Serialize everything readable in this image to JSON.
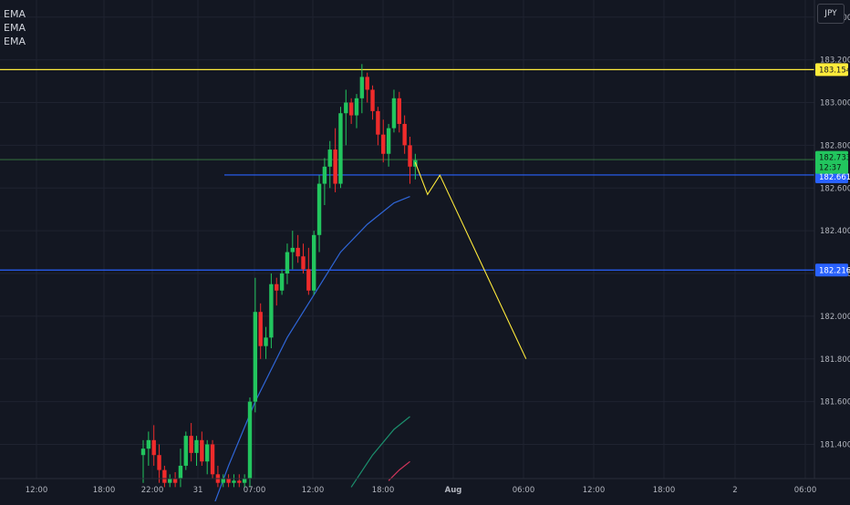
{
  "toolbar": {
    "currency": "JPY"
  },
  "indicators": [
    {
      "label": "EMA"
    },
    {
      "label": "EMA"
    },
    {
      "label": "EMA"
    }
  ],
  "colors": {
    "background": "#131722",
    "grid": "#1f2330",
    "up": "#26a69a",
    "up_bright": "#22c55e",
    "down": "#ef2b2b",
    "yellow": "#ffeb3b",
    "blue_line": "#2962ff",
    "ema_blue": "#2f66d8",
    "ema_teal": "#1b8f6d",
    "ema_red": "#d0345a",
    "axis_text": "#b2b5be",
    "green_line": "#4caf50"
  },
  "chart_data": {
    "type": "candlestick",
    "symbol_currency": "JPY",
    "ylim": [
      181.24,
      183.48
    ],
    "y_ticks": [
      "183.400",
      "183.200",
      "183.000",
      "182.800",
      "182.600",
      "182.400",
      "182.200",
      "182.000",
      "181.800",
      "181.600",
      "181.400"
    ],
    "x_ticks": [
      "12:00",
      "18:00",
      "22:00",
      "31",
      "07:00",
      "12:00",
      "18:00",
      "Aug",
      "06:00",
      "12:00",
      "18:00",
      "2",
      "06:00"
    ],
    "horizontal_lines": [
      {
        "price": 183.154,
        "label": "183.154",
        "color": "yellow"
      },
      {
        "price": 182.661,
        "label": "182.661",
        "color": "blue"
      },
      {
        "price": 182.216,
        "label": "182.216",
        "color": "blue"
      },
      {
        "price": 182.733,
        "label": "182.733",
        "color": "green"
      }
    ],
    "current_price": {
      "value": "182.733",
      "countdown": "12:37"
    },
    "projection": [
      [
        0,
        182.72
      ],
      [
        1,
        182.57
      ],
      [
        2,
        182.66
      ],
      [
        9,
        181.8
      ]
    ],
    "ema": [
      {
        "color": "ema_blue",
        "points": [
          [
            -38,
            181.1
          ],
          [
            -35,
            181.3
          ],
          [
            -30,
            181.6
          ],
          [
            -24,
            181.9
          ],
          [
            -19,
            182.1
          ],
          [
            -14,
            182.3
          ],
          [
            -9,
            182.43
          ],
          [
            -4,
            182.53
          ],
          [
            -1,
            182.56
          ]
        ]
      },
      {
        "color": "ema_teal",
        "points": [
          [
            -12,
            181.2
          ],
          [
            -8,
            181.35
          ],
          [
            -4,
            181.47
          ],
          [
            -1,
            181.53
          ]
        ]
      },
      {
        "color": "ema_red",
        "points": [
          [
            -5,
            181.23
          ],
          [
            -3,
            181.28
          ],
          [
            -1,
            181.32
          ]
        ]
      }
    ],
    "candles": [
      {
        "o": 181.35,
        "h": 181.42,
        "l": 181.22,
        "c": 181.38
      },
      {
        "o": 181.38,
        "h": 181.46,
        "l": 181.3,
        "c": 181.42
      },
      {
        "o": 181.42,
        "h": 181.49,
        "l": 181.3,
        "c": 181.35
      },
      {
        "o": 181.35,
        "h": 181.4,
        "l": 181.22,
        "c": 181.28
      },
      {
        "o": 181.28,
        "h": 181.3,
        "l": 181.2,
        "c": 181.22
      },
      {
        "o": 181.22,
        "h": 181.26,
        "l": 181.2,
        "c": 181.24
      },
      {
        "o": 181.24,
        "h": 181.27,
        "l": 181.2,
        "c": 181.22
      },
      {
        "o": 181.24,
        "h": 181.38,
        "l": 181.2,
        "c": 181.3
      },
      {
        "o": 181.3,
        "h": 181.46,
        "l": 181.28,
        "c": 181.44
      },
      {
        "o": 181.44,
        "h": 181.5,
        "l": 181.32,
        "c": 181.36
      },
      {
        "o": 181.36,
        "h": 181.44,
        "l": 181.3,
        "c": 181.42
      },
      {
        "o": 181.42,
        "h": 181.46,
        "l": 181.3,
        "c": 181.32
      },
      {
        "o": 181.32,
        "h": 181.42,
        "l": 181.26,
        "c": 181.4
      },
      {
        "o": 181.4,
        "h": 181.42,
        "l": 181.24,
        "c": 181.26
      },
      {
        "o": 181.26,
        "h": 181.3,
        "l": 181.2,
        "c": 181.22
      },
      {
        "o": 181.22,
        "h": 181.26,
        "l": 181.2,
        "c": 181.24
      },
      {
        "o": 181.24,
        "h": 181.26,
        "l": 181.2,
        "c": 181.22
      },
      {
        "o": 181.22,
        "h": 181.26,
        "l": 181.2,
        "c": 181.23
      },
      {
        "o": 181.23,
        "h": 181.26,
        "l": 181.2,
        "c": 181.22
      },
      {
        "o": 181.22,
        "h": 181.26,
        "l": 181.2,
        "c": 181.24
      },
      {
        "o": 181.24,
        "h": 181.62,
        "l": 181.2,
        "c": 181.6
      },
      {
        "o": 181.6,
        "h": 182.18,
        "l": 181.55,
        "c": 182.02
      },
      {
        "o": 182.02,
        "h": 182.06,
        "l": 181.8,
        "c": 181.86
      },
      {
        "o": 181.86,
        "h": 181.95,
        "l": 181.8,
        "c": 181.9
      },
      {
        "o": 181.9,
        "h": 182.2,
        "l": 181.85,
        "c": 182.15
      },
      {
        "o": 182.15,
        "h": 182.18,
        "l": 182.05,
        "c": 182.12
      },
      {
        "o": 182.12,
        "h": 182.22,
        "l": 182.1,
        "c": 182.2
      },
      {
        "o": 182.2,
        "h": 182.34,
        "l": 182.15,
        "c": 182.3
      },
      {
        "o": 182.3,
        "h": 182.4,
        "l": 182.22,
        "c": 182.32
      },
      {
        "o": 182.32,
        "h": 182.38,
        "l": 182.25,
        "c": 182.28
      },
      {
        "o": 182.28,
        "h": 182.34,
        "l": 182.2,
        "c": 182.22
      },
      {
        "o": 182.22,
        "h": 182.32,
        "l": 182.1,
        "c": 182.12
      },
      {
        "o": 182.12,
        "h": 182.4,
        "l": 182.1,
        "c": 182.38
      },
      {
        "o": 182.38,
        "h": 182.66,
        "l": 182.3,
        "c": 182.62
      },
      {
        "o": 182.62,
        "h": 182.74,
        "l": 182.52,
        "c": 182.7
      },
      {
        "o": 182.7,
        "h": 182.82,
        "l": 182.6,
        "c": 182.78
      },
      {
        "o": 182.78,
        "h": 182.88,
        "l": 182.58,
        "c": 182.62
      },
      {
        "o": 182.62,
        "h": 182.98,
        "l": 182.6,
        "c": 182.95
      },
      {
        "o": 182.95,
        "h": 183.06,
        "l": 182.8,
        "c": 183.0
      },
      {
        "o": 183.0,
        "h": 183.02,
        "l": 182.9,
        "c": 182.94
      },
      {
        "o": 182.94,
        "h": 183.04,
        "l": 182.88,
        "c": 183.02
      },
      {
        "o": 183.02,
        "h": 183.18,
        "l": 182.95,
        "c": 183.12
      },
      {
        "o": 183.12,
        "h": 183.14,
        "l": 183.0,
        "c": 183.06
      },
      {
        "o": 183.06,
        "h": 183.08,
        "l": 182.92,
        "c": 182.96
      },
      {
        "o": 182.96,
        "h": 182.98,
        "l": 182.8,
        "c": 182.85
      },
      {
        "o": 182.85,
        "h": 182.92,
        "l": 182.72,
        "c": 182.76
      },
      {
        "o": 182.76,
        "h": 182.9,
        "l": 182.7,
        "c": 182.88
      },
      {
        "o": 182.88,
        "h": 183.06,
        "l": 182.86,
        "c": 183.02
      },
      {
        "o": 183.02,
        "h": 183.05,
        "l": 182.86,
        "c": 182.9
      },
      {
        "o": 182.9,
        "h": 182.94,
        "l": 182.76,
        "c": 182.8
      },
      {
        "o": 182.8,
        "h": 182.84,
        "l": 182.62,
        "c": 182.7
      },
      {
        "o": 182.7,
        "h": 182.76,
        "l": 182.64,
        "c": 182.73
      }
    ]
  }
}
